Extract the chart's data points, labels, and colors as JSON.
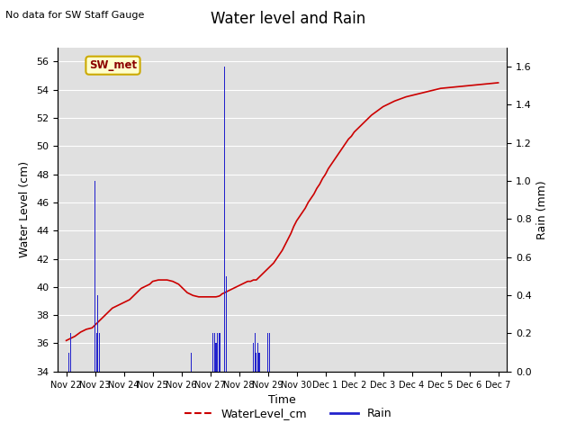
{
  "title": "Water level and Rain",
  "subtitle": "No data for SW Staff Gauge",
  "xlabel": "Time",
  "ylabel_left": "Water Level (cm)",
  "ylabel_right": "Rain (mm)",
  "ylim_left": [
    34,
    57
  ],
  "ylim_right": [
    0.0,
    1.7
  ],
  "yticks_left": [
    34,
    36,
    38,
    40,
    42,
    44,
    46,
    48,
    50,
    52,
    54,
    56
  ],
  "yticks_right": [
    0.0,
    0.2,
    0.4,
    0.6,
    0.8,
    1.0,
    1.2,
    1.4,
    1.6
  ],
  "background_color": "#e0e0e0",
  "legend_items": [
    "WaterLevel_cm",
    "Rain"
  ],
  "water_color": "#cc0000",
  "rain_color": "#2222cc",
  "station_label": "SW_met",
  "water_level_data": [
    [
      0.0,
      36.2
    ],
    [
      0.15,
      36.35
    ],
    [
      0.3,
      36.5
    ],
    [
      0.5,
      36.8
    ],
    [
      0.7,
      37.0
    ],
    [
      0.9,
      37.1
    ],
    [
      1.0,
      37.3
    ],
    [
      1.1,
      37.5
    ],
    [
      1.2,
      37.7
    ],
    [
      1.3,
      37.9
    ],
    [
      1.4,
      38.1
    ],
    [
      1.5,
      38.3
    ],
    [
      1.6,
      38.5
    ],
    [
      1.7,
      38.6
    ],
    [
      1.8,
      38.7
    ],
    [
      1.9,
      38.8
    ],
    [
      2.0,
      38.9
    ],
    [
      2.1,
      39.0
    ],
    [
      2.2,
      39.1
    ],
    [
      2.3,
      39.3
    ],
    [
      2.4,
      39.5
    ],
    [
      2.5,
      39.7
    ],
    [
      2.6,
      39.9
    ],
    [
      2.7,
      40.0
    ],
    [
      2.8,
      40.1
    ],
    [
      2.9,
      40.2
    ],
    [
      3.0,
      40.4
    ],
    [
      3.1,
      40.45
    ],
    [
      3.2,
      40.5
    ],
    [
      3.3,
      40.5
    ],
    [
      3.5,
      40.5
    ],
    [
      3.7,
      40.4
    ],
    [
      3.9,
      40.2
    ],
    [
      4.0,
      40.0
    ],
    [
      4.1,
      39.8
    ],
    [
      4.2,
      39.6
    ],
    [
      4.3,
      39.5
    ],
    [
      4.4,
      39.4
    ],
    [
      4.5,
      39.35
    ],
    [
      4.6,
      39.3
    ],
    [
      4.7,
      39.3
    ],
    [
      4.8,
      39.3
    ],
    [
      4.9,
      39.3
    ],
    [
      5.0,
      39.3
    ],
    [
      5.1,
      39.3
    ],
    [
      5.2,
      39.3
    ],
    [
      5.3,
      39.35
    ],
    [
      5.35,
      39.4
    ],
    [
      5.4,
      39.5
    ],
    [
      5.5,
      39.6
    ],
    [
      5.6,
      39.7
    ],
    [
      5.7,
      39.8
    ],
    [
      5.8,
      39.9
    ],
    [
      5.9,
      40.0
    ],
    [
      6.0,
      40.1
    ],
    [
      6.1,
      40.2
    ],
    [
      6.2,
      40.3
    ],
    [
      6.3,
      40.4
    ],
    [
      6.4,
      40.4
    ],
    [
      6.5,
      40.5
    ],
    [
      6.6,
      40.5
    ],
    [
      6.65,
      40.6
    ],
    [
      6.7,
      40.7
    ],
    [
      6.8,
      40.9
    ],
    [
      6.9,
      41.1
    ],
    [
      7.0,
      41.3
    ],
    [
      7.1,
      41.5
    ],
    [
      7.2,
      41.7
    ],
    [
      7.3,
      42.0
    ],
    [
      7.4,
      42.3
    ],
    [
      7.5,
      42.6
    ],
    [
      7.6,
      43.0
    ],
    [
      7.7,
      43.4
    ],
    [
      7.8,
      43.8
    ],
    [
      7.9,
      44.3
    ],
    [
      8.0,
      44.7
    ],
    [
      8.1,
      45.0
    ],
    [
      8.2,
      45.3
    ],
    [
      8.3,
      45.6
    ],
    [
      8.35,
      45.8
    ],
    [
      8.4,
      46.0
    ],
    [
      8.5,
      46.3
    ],
    [
      8.6,
      46.6
    ],
    [
      8.7,
      47.0
    ],
    [
      8.8,
      47.3
    ],
    [
      8.9,
      47.7
    ],
    [
      9.0,
      48.0
    ],
    [
      9.1,
      48.4
    ],
    [
      9.2,
      48.7
    ],
    [
      9.3,
      49.0
    ],
    [
      9.4,
      49.3
    ],
    [
      9.5,
      49.6
    ],
    [
      9.6,
      49.9
    ],
    [
      9.7,
      50.2
    ],
    [
      9.8,
      50.5
    ],
    [
      9.9,
      50.7
    ],
    [
      10.0,
      51.0
    ],
    [
      10.1,
      51.2
    ],
    [
      10.2,
      51.4
    ],
    [
      10.3,
      51.6
    ],
    [
      10.4,
      51.8
    ],
    [
      10.5,
      52.0
    ],
    [
      10.6,
      52.2
    ],
    [
      10.7,
      52.35
    ],
    [
      10.8,
      52.5
    ],
    [
      10.9,
      52.65
    ],
    [
      11.0,
      52.8
    ],
    [
      11.2,
      53.0
    ],
    [
      11.4,
      53.2
    ],
    [
      11.6,
      53.35
    ],
    [
      11.8,
      53.5
    ],
    [
      12.0,
      53.6
    ],
    [
      12.2,
      53.7
    ],
    [
      12.4,
      53.8
    ],
    [
      12.6,
      53.9
    ],
    [
      12.8,
      54.0
    ],
    [
      13.0,
      54.1
    ],
    [
      13.5,
      54.2
    ],
    [
      14.0,
      54.3
    ],
    [
      14.5,
      54.4
    ],
    [
      15.0,
      54.5
    ]
  ],
  "rain_data": [
    [
      0.1,
      0.1
    ],
    [
      0.15,
      0.2
    ],
    [
      1.0,
      1.0
    ],
    [
      1.05,
      0.2
    ],
    [
      1.1,
      0.4
    ],
    [
      1.15,
      0.2
    ],
    [
      4.35,
      0.1
    ],
    [
      5.1,
      0.2
    ],
    [
      5.15,
      0.2
    ],
    [
      5.2,
      0.15
    ],
    [
      5.25,
      0.2
    ],
    [
      5.3,
      0.2
    ],
    [
      5.35,
      0.2
    ],
    [
      5.5,
      1.6
    ],
    [
      5.55,
      0.5
    ],
    [
      6.5,
      0.15
    ],
    [
      6.55,
      0.2
    ],
    [
      6.6,
      0.1
    ],
    [
      6.65,
      0.15
    ],
    [
      6.7,
      0.1
    ],
    [
      7.0,
      0.2
    ],
    [
      7.05,
      0.2
    ]
  ],
  "xtick_positions": [
    0,
    1,
    2,
    3,
    4,
    5,
    6,
    7,
    8,
    9,
    10,
    11,
    12,
    13,
    14,
    15
  ],
  "xtick_labels": [
    "Nov 22",
    "Nov 23",
    "Nov 24",
    "Nov 25",
    "Nov 26",
    "Nov 27",
    "Nov 28",
    "Nov 29",
    "Nov 30",
    "Dec 1",
    "Dec 2",
    "Dec 3",
    "Dec 4",
    "Dec 5",
    "Dec 6",
    "Dec 7"
  ]
}
